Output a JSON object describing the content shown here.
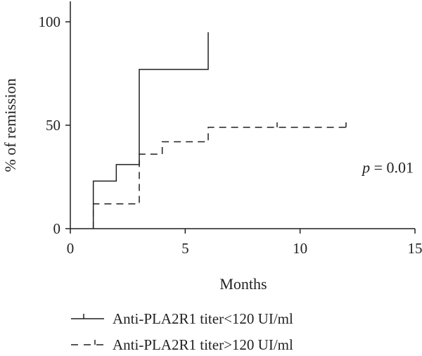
{
  "chart_data": {
    "type": "line",
    "subtype": "kaplan-meier-step",
    "xlabel": "Months",
    "ylabel": "% of remission",
    "xlim": [
      0,
      15
    ],
    "ylim": [
      0,
      100
    ],
    "xticks": [
      0,
      5,
      10,
      15
    ],
    "yticks": [
      0,
      50,
      100
    ],
    "grid": false,
    "legend_position": "bottom",
    "annotation": {
      "italic": "p",
      "rest": " = 0.01",
      "x": 15,
      "y": 27
    },
    "series": [
      {
        "name": "Anti-PLA2R1 titer<120 UI/ml",
        "style": "solid",
        "x": [
          1,
          1,
          2,
          2,
          3,
          3,
          6,
          6
        ],
        "y": [
          0,
          23,
          23,
          31,
          31,
          77,
          77,
          95
        ],
        "censor_x": []
      },
      {
        "name": "Anti-PLA2R1 titer>120 UI/ml",
        "style": "dashed",
        "x": [
          1,
          1,
          3,
          3,
          4,
          4,
          6,
          6,
          12
        ],
        "y": [
          0,
          12,
          12,
          36,
          36,
          42,
          42,
          49,
          49
        ],
        "censor_x": [
          9,
          12
        ]
      }
    ]
  }
}
